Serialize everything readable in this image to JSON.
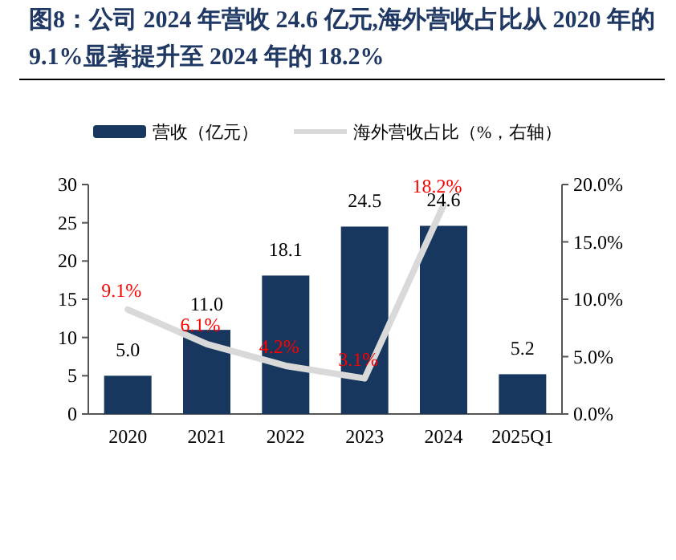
{
  "chart_data": {
    "type": "bar",
    "title": "图8：公司 2024 年营收 24.6 亿元,海外营收占比从 2020 年的 9.1%显著提升至 2024 年的 18.2%",
    "categories": [
      "2020",
      "2021",
      "2022",
      "2023",
      "2024",
      "2025Q1"
    ],
    "series": [
      {
        "name": "营收（亿元）",
        "color": "#17375e",
        "values": [
          5.0,
          11.0,
          18.1,
          24.5,
          24.6,
          5.2
        ],
        "value_labels": [
          "5.0",
          "11.0",
          "18.1",
          "24.5",
          "24.6",
          "5.2"
        ]
      },
      {
        "name": "海外营收占比（%，右轴）",
        "type": "line",
        "axis": "y2",
        "color": "#d9d9d9",
        "values": [
          9.1,
          6.1,
          4.2,
          3.1,
          18.2,
          null
        ],
        "value_labels": [
          "9.1%",
          "6.1%",
          "4.2%",
          "3.1%",
          "18.2%",
          null
        ]
      }
    ],
    "ylim": [
      0,
      30
    ],
    "yticks": [
      0,
      5,
      10,
      15,
      20,
      25,
      30
    ],
    "y2lim": [
      0,
      20
    ],
    "y2ticks": [
      {
        "value": 0,
        "label": "0.0%"
      },
      {
        "value": 5,
        "label": "5.0%"
      },
      {
        "value": 10,
        "label": "10.0%"
      },
      {
        "value": 15,
        "label": "15.0%"
      },
      {
        "value": 20,
        "label": "20.0%"
      }
    ],
    "legend": "top",
    "grid": false
  }
}
